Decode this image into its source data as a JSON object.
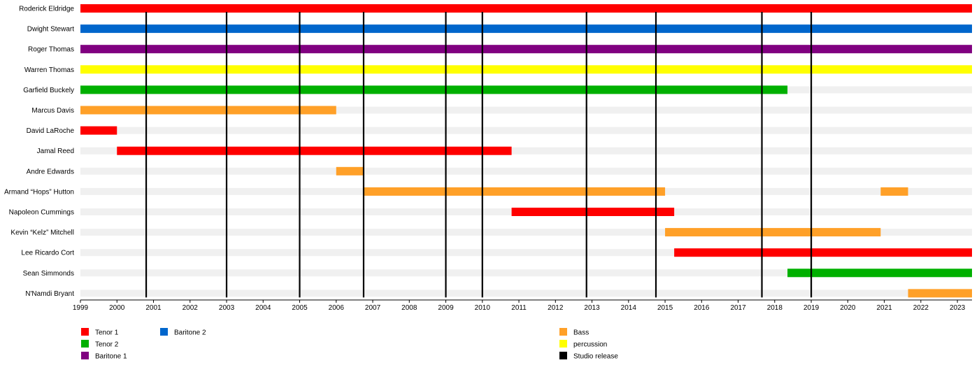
{
  "chart_data": {
    "type": "timeline",
    "x_range": [
      1999,
      2023.4
    ],
    "ticks": [
      "1999",
      "2000",
      "2001",
      "2002",
      "2003",
      "2004",
      "2005",
      "2006",
      "2007",
      "2008",
      "2009",
      "2010",
      "2011",
      "2012",
      "2013",
      "2014",
      "2015",
      "2016",
      "2017",
      "2018",
      "2019",
      "2020",
      "2021",
      "2022",
      "2023"
    ],
    "roles": [
      {
        "key": "tenor1",
        "label": "Tenor 1",
        "color": "#ff0000"
      },
      {
        "key": "tenor2",
        "label": "Tenor 2",
        "color": "#00b000"
      },
      {
        "key": "baritone1",
        "label": "Baritone 1",
        "color": "#800080"
      },
      {
        "key": "baritone2",
        "label": "Baritone 2",
        "color": "#0066cc"
      },
      {
        "key": "bass",
        "label": "Bass",
        "color": "#ffa028"
      },
      {
        "key": "percussion",
        "label": "percussion",
        "color": "#ffff00"
      },
      {
        "key": "studio",
        "label": "Studio release",
        "color": "#000000"
      }
    ],
    "members": [
      {
        "name": "Roderick Eldridge",
        "periods": [
          {
            "role": "tenor1",
            "start": 1999,
            "end": 2023.4
          }
        ]
      },
      {
        "name": "Dwight Stewart",
        "periods": [
          {
            "role": "baritone2",
            "start": 1999,
            "end": 2023.4
          }
        ]
      },
      {
        "name": "Roger Thomas",
        "periods": [
          {
            "role": "baritone1",
            "start": 1999,
            "end": 2023.4
          }
        ]
      },
      {
        "name": "Warren Thomas",
        "periods": [
          {
            "role": "percussion",
            "start": 1999,
            "end": 2023.4
          }
        ]
      },
      {
        "name": "Garfield Buckely",
        "periods": [
          {
            "role": "tenor2",
            "start": 1999,
            "end": 2018.35
          }
        ]
      },
      {
        "name": "Marcus Davis",
        "periods": [
          {
            "role": "bass",
            "start": 1999,
            "end": 2006.0
          }
        ]
      },
      {
        "name": "David LaRoche",
        "periods": [
          {
            "role": "tenor1",
            "start": 1999,
            "end": 2000.0
          }
        ]
      },
      {
        "name": "Jamal Reed",
        "periods": [
          {
            "role": "tenor1",
            "start": 2000.0,
            "end": 2010.8
          }
        ]
      },
      {
        "name": "Andre Edwards",
        "periods": [
          {
            "role": "bass",
            "start": 2006.0,
            "end": 2006.75
          }
        ]
      },
      {
        "name": "Armand “Hops” Hutton",
        "periods": [
          {
            "role": "bass",
            "start": 2006.75,
            "end": 2015.0
          },
          {
            "role": "bass",
            "start": 2020.9,
            "end": 2021.65
          }
        ]
      },
      {
        "name": "Napoleon Cummings",
        "periods": [
          {
            "role": "tenor1",
            "start": 2010.8,
            "end": 2015.25
          }
        ]
      },
      {
        "name": "Kevin “Kelz” Mitchell",
        "periods": [
          {
            "role": "bass",
            "start": 2015.0,
            "end": 2020.9
          }
        ]
      },
      {
        "name": "Lee Ricardo Cort",
        "periods": [
          {
            "role": "tenor1",
            "start": 2015.25,
            "end": 2023.4
          }
        ]
      },
      {
        "name": "Sean Simmonds",
        "periods": [
          {
            "role": "tenor2",
            "start": 2018.35,
            "end": 2023.4
          }
        ]
      },
      {
        "name": "N'Namdi Bryant",
        "periods": [
          {
            "role": "bass",
            "start": 2021.65,
            "end": 2023.4
          }
        ]
      }
    ],
    "studio_releases": [
      2000.8,
      2003.0,
      2005.0,
      2006.75,
      2009.0,
      2010.0,
      2012.85,
      2014.75,
      2017.65,
      2019.0
    ]
  }
}
